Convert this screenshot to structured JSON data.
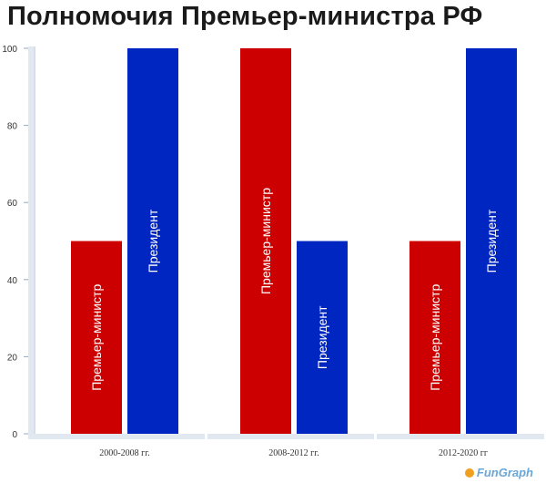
{
  "title": "Полномочия Премьер-министра РФ",
  "watermark": "FunGraph",
  "colors": {
    "pm": "#cc0000",
    "president": "#0026c2",
    "axis": "#c8d4e3",
    "band": "#e2e8f0"
  },
  "chart_data": {
    "type": "bar",
    "title": "Полномочия Премьер-министра РФ",
    "categories": [
      "2000-2008 гг.",
      "2008-2012 гг.",
      "2012-2020 гг"
    ],
    "series": [
      {
        "name": "Премьер-министр",
        "color": "#cc0000",
        "values": [
          50,
          100,
          50
        ]
      },
      {
        "name": "Президент",
        "color": "#0026c2",
        "values": [
          100,
          50,
          100
        ]
      }
    ],
    "yticks": [
      0,
      20,
      40,
      60,
      80,
      100
    ],
    "ylim": [
      0,
      100
    ],
    "xlabel": "",
    "ylabel": "",
    "grid": false,
    "legend": "none"
  }
}
